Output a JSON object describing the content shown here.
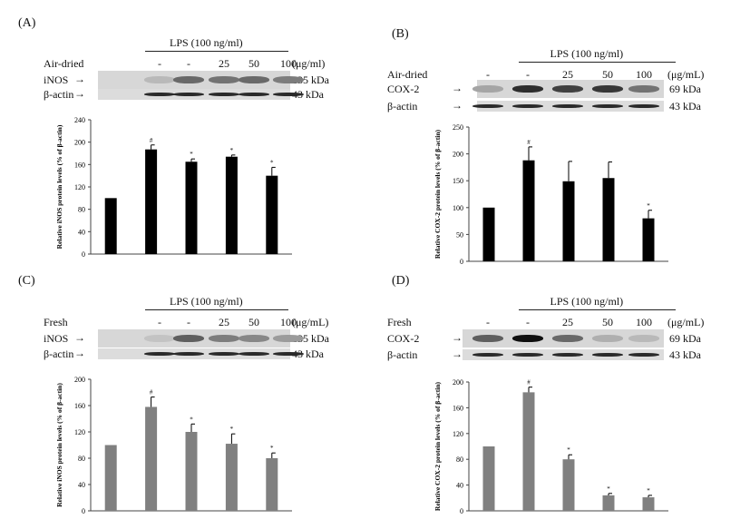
{
  "panels": [
    {
      "id": "A",
      "label": "(A)",
      "lps_label": "LPS (100 ng/ml)",
      "row_label": "Air-dried",
      "unit_label": "(μg/ml)",
      "lanes": [
        "-",
        "-",
        "25",
        "50",
        "100"
      ],
      "protein_label": "iNOS",
      "protein_kda": "135 kDa",
      "actin_label": "β-actin",
      "actin_kda": "43 kDa",
      "band_intensity": [
        0.15,
        0.55,
        0.5,
        0.55,
        0.45
      ]
    },
    {
      "id": "B",
      "label": "(B)",
      "lps_label": "LPS (100 ng/ml)",
      "row_label": "Air-dried",
      "unit_label": "(μg/mL)",
      "lanes": [
        "-",
        "-",
        "25",
        "50",
        "100"
      ],
      "protein_label": "COX-2",
      "protein_kda": "69 kDa",
      "actin_label": "β-actin",
      "actin_kda": "43 kDa",
      "band_intensity": [
        0.25,
        0.85,
        0.75,
        0.8,
        0.5
      ]
    },
    {
      "id": "C",
      "label": "(C)",
      "lps_label": "LPS (100 ng/ml)",
      "row_label": "Fresh",
      "unit_label": "(μg/mL)",
      "lanes": [
        "-",
        "-",
        "25",
        "50",
        "100"
      ],
      "protein_label": "iNOS",
      "protein_kda": "135 kDa",
      "actin_label": "β-actin",
      "actin_kda": "43 kDa",
      "band_intensity": [
        0.1,
        0.6,
        0.45,
        0.4,
        0.3
      ]
    },
    {
      "id": "D",
      "label": "(D)",
      "lps_label": "LPS (100 ng/ml)",
      "row_label": "Fresh",
      "unit_label": "(μg/mL)",
      "lanes": [
        "-",
        "-",
        "25",
        "50",
        "100"
      ],
      "protein_label": "COX-2",
      "protein_kda": "69 kDa",
      "actin_label": "β-actin",
      "actin_kda": "43 kDa",
      "band_intensity": [
        0.6,
        1.0,
        0.55,
        0.2,
        0.15
      ]
    }
  ],
  "chart_data": [
    {
      "type": "bar",
      "panel": "A",
      "ylabel": "Relative iNOS protein levels (% of β-actin)",
      "ylim": [
        0,
        240
      ],
      "yticks": [
        0,
        40,
        80,
        120,
        160,
        200,
        240
      ],
      "values": [
        100,
        187,
        165,
        174,
        140
      ],
      "errors": [
        0,
        8,
        5,
        3,
        15
      ],
      "markers": [
        "",
        "#",
        "*",
        "*",
        "*"
      ],
      "color": "#000000"
    },
    {
      "type": "bar",
      "panel": "B",
      "ylabel": "Relative COX-2 protein levels (% of β-actin)",
      "ylim": [
        0,
        250
      ],
      "yticks": [
        0,
        50,
        100,
        150,
        200,
        250
      ],
      "values": [
        100,
        188,
        149,
        155,
        80
      ],
      "errors": [
        0,
        25,
        37,
        30,
        15
      ],
      "markers": [
        "",
        "#",
        "",
        "",
        "*"
      ],
      "color": "#000000"
    },
    {
      "type": "bar",
      "panel": "C",
      "ylabel": "Relative iNOS protein levels (% of β-actin)",
      "ylim": [
        0,
        200
      ],
      "yticks": [
        0,
        40,
        80,
        120,
        160,
        200
      ],
      "values": [
        100,
        158,
        120,
        102,
        80
      ],
      "errors": [
        0,
        15,
        12,
        15,
        8
      ],
      "markers": [
        "",
        "#",
        "*",
        "*",
        "*"
      ],
      "color": "#808080"
    },
    {
      "type": "bar",
      "panel": "D",
      "ylabel": "Relative COX-2 protein levels (% of β-actin)",
      "ylim": [
        0,
        200
      ],
      "yticks": [
        0,
        40,
        80,
        120,
        160,
        200
      ],
      "values": [
        100,
        184,
        80,
        24,
        21
      ],
      "errors": [
        0,
        8,
        7,
        3,
        3
      ],
      "markers": [
        "",
        "#",
        "*",
        "*",
        "*"
      ],
      "color": "#808080"
    }
  ]
}
